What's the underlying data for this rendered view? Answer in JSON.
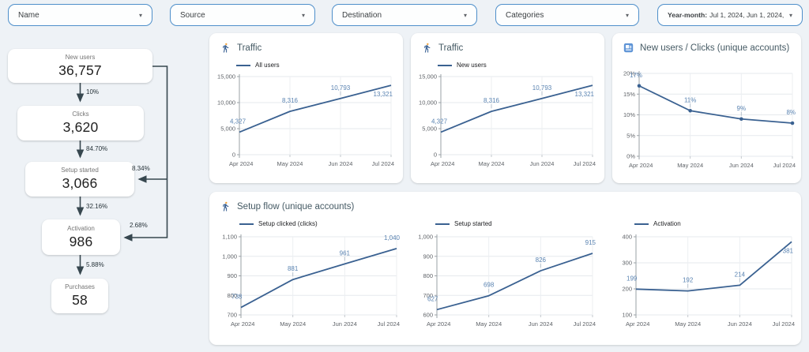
{
  "page": {
    "background": "#eef2f6",
    "line_color": "#3a6191",
    "label_color": "#5b84b2",
    "axis_text_color": "#5f6368",
    "filter_border_color": "#4e8fca"
  },
  "filters": {
    "caret_glyph": "▾",
    "items": [
      {
        "label": "Name"
      },
      {
        "label": "Source"
      },
      {
        "label": "Destination"
      },
      {
        "label": "Categories"
      },
      {
        "prefix": "Year-month:",
        "label": "Jul 1, 2024, Jun 1, 2024, May... (4)"
      }
    ]
  },
  "funnel": {
    "steps": [
      {
        "label": "New users",
        "value": "36,757"
      },
      {
        "label": "Clicks",
        "value": "3,620"
      },
      {
        "label": "Setup started",
        "value": "3,066"
      },
      {
        "label": "Activation",
        "value": "986"
      },
      {
        "label": "Purchases",
        "value": "58"
      }
    ],
    "conversions": [
      {
        "label": "10%"
      },
      {
        "label": "84.70%"
      },
      {
        "label": "32.16%"
      },
      {
        "label": "5.88%"
      }
    ],
    "bypass": [
      {
        "label": "8.34%"
      },
      {
        "label": "2.68%"
      }
    ]
  },
  "cards": {
    "traffic_all": {
      "title": "Traffic"
    },
    "traffic_new": {
      "title": "Traffic"
    },
    "ratio": {
      "title": "New users / Clicks (unique accounts)"
    },
    "setup_flow": {
      "title": "Setup flow (unique accounts)"
    }
  },
  "chart_data": [
    {
      "type": "line",
      "title": "Traffic",
      "legend": "All users",
      "categories": [
        "Apr 2024",
        "May 2024",
        "Jun 2024",
        "Jul 2024"
      ],
      "values": [
        4327,
        8316,
        10793,
        13321
      ],
      "labels": [
        "4,327",
        "8,316",
        "10,793",
        "13,321"
      ],
      "ylim": [
        0,
        15000
      ],
      "yticks": [
        0,
        5000,
        10000,
        15000
      ],
      "ytick_labels": [
        "0",
        "5,000",
        "10,000",
        "15,000"
      ],
      "markers": false,
      "grid": true,
      "legend_position": "top-left"
    },
    {
      "type": "line",
      "title": "Traffic",
      "legend": "New users",
      "categories": [
        "Apr 2024",
        "May 2024",
        "Jun 2024",
        "Jul 2024"
      ],
      "values": [
        4327,
        8316,
        10793,
        13321
      ],
      "labels": [
        "4,327",
        "8,316",
        "10,793",
        "13,321"
      ],
      "ylim": [
        0,
        15000
      ],
      "yticks": [
        0,
        5000,
        10000,
        15000
      ],
      "ytick_labels": [
        "0",
        "5,000",
        "10,000",
        "15,000"
      ],
      "markers": false,
      "grid": true,
      "legend_position": "top-left"
    },
    {
      "type": "line",
      "title": "New users / Clicks (unique accounts)",
      "legend": null,
      "categories": [
        "Apr 2024",
        "May 2024",
        "Jun 2024",
        "Jul 2024"
      ],
      "values": [
        17,
        11,
        9,
        8
      ],
      "labels": [
        "17%",
        "11%",
        "9%",
        "8%"
      ],
      "ylim": [
        0,
        20
      ],
      "yticks": [
        0,
        5,
        10,
        15,
        20
      ],
      "ytick_labels": [
        "0%",
        "5%",
        "10%",
        "15%",
        "20%"
      ],
      "markers": true,
      "grid": true,
      "legend_position": "none"
    },
    {
      "type": "line",
      "title": "Setup flow (unique accounts)",
      "legend": "Setup clicked (clicks)",
      "categories": [
        "Apr 2024",
        "May 2024",
        "Jun 2024",
        "Jul 2024"
      ],
      "values": [
        738,
        881,
        961,
        1040
      ],
      "labels": [
        "738",
        "881",
        "961",
        "1,040"
      ],
      "ylim": [
        700,
        1100
      ],
      "yticks": [
        700,
        800,
        900,
        1000,
        1100
      ],
      "ytick_labels": [
        "700",
        "800",
        "900",
        "1,000",
        "1,100"
      ],
      "markers": false,
      "grid": true,
      "legend_position": "top-left"
    },
    {
      "type": "line",
      "title": "Setup flow (unique accounts)",
      "legend": "Setup started",
      "categories": [
        "Apr 2024",
        "May 2024",
        "Jun 2024",
        "Jul 2024"
      ],
      "values": [
        627,
        698,
        826,
        915
      ],
      "labels": [
        "627",
        "698",
        "826",
        "915"
      ],
      "ylim": [
        600,
        1000
      ],
      "yticks": [
        600,
        700,
        800,
        900,
        1000
      ],
      "ytick_labels": [
        "600",
        "700",
        "800",
        "900",
        "1,000"
      ],
      "markers": false,
      "grid": true,
      "legend_position": "top-left"
    },
    {
      "type": "line",
      "title": "Setup flow (unique accounts)",
      "legend": "Activation",
      "categories": [
        "Apr 2024",
        "May 2024",
        "Jun 2024",
        "Jul 2024"
      ],
      "values": [
        199,
        192,
        214,
        381
      ],
      "labels": [
        "199",
        "192",
        "214",
        "381"
      ],
      "ylim": [
        100,
        400
      ],
      "yticks": [
        100,
        200,
        300,
        400
      ],
      "ytick_labels": [
        "100",
        "200",
        "300",
        "400"
      ],
      "markers": false,
      "grid": true,
      "legend_position": "top-left"
    }
  ]
}
